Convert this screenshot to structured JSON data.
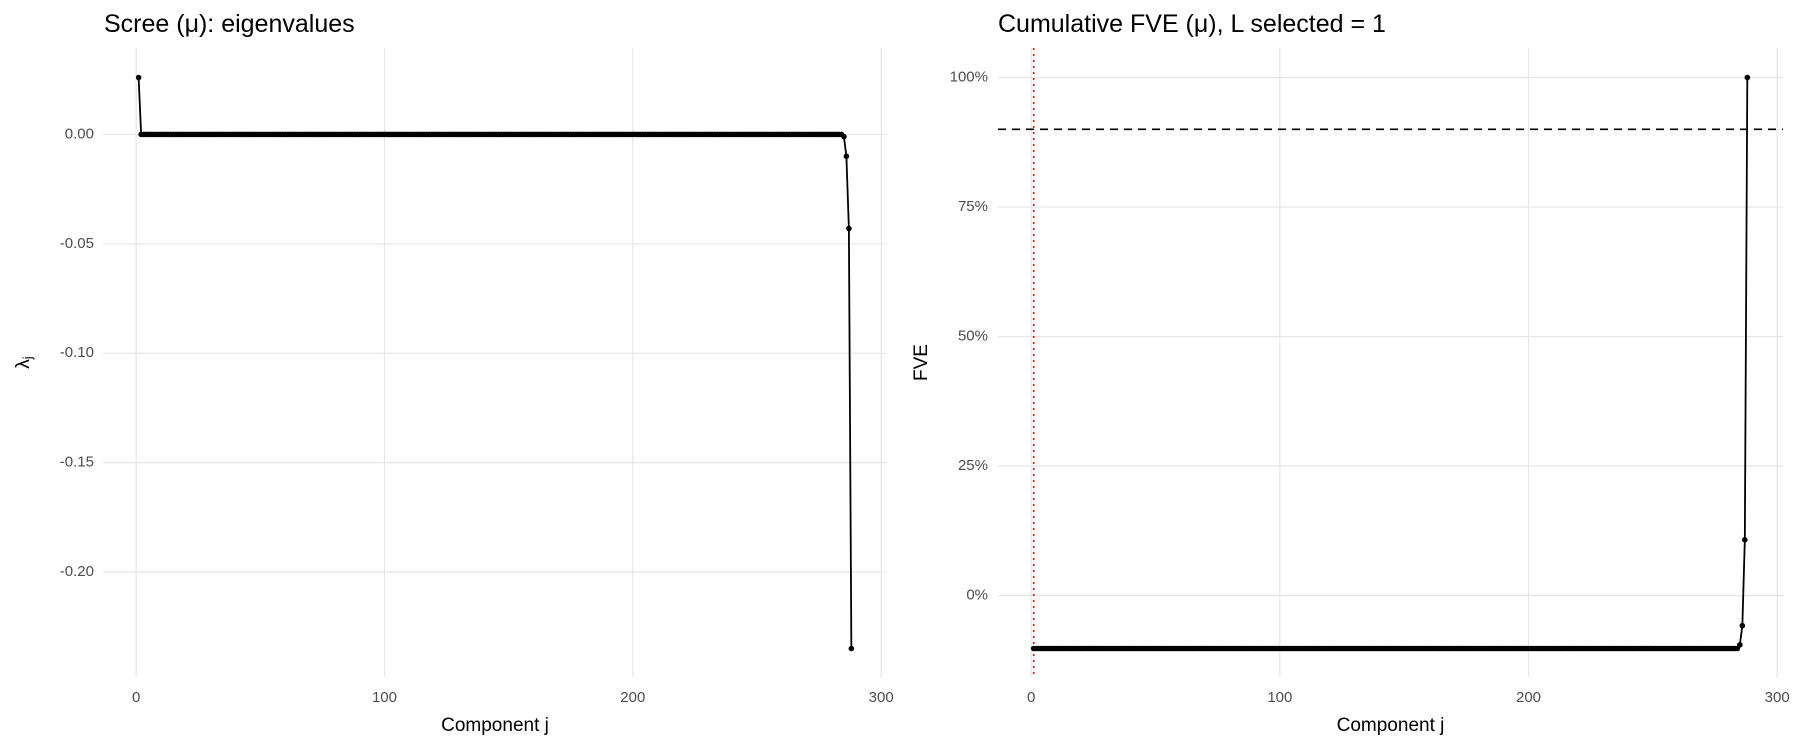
{
  "chart_data": [
    {
      "type": "line",
      "title": "Scree (μ): eigenvalues",
      "x_label": "Component j",
      "y_label": "λ",
      "y_label_subscript": "j",
      "color": "#000000",
      "grid": true,
      "xlim": [
        -13.35,
        302.35
      ],
      "xticks": [
        0,
        100,
        200,
        300
      ],
      "ylim": [
        -0.248,
        0.0395
      ],
      "yticks": [
        {
          "value": 0,
          "label": "0.00"
        },
        {
          "value": -0.05,
          "label": "-0.05"
        },
        {
          "value": -0.1,
          "label": "-0.10"
        },
        {
          "value": -0.15,
          "label": "-0.15"
        },
        {
          "value": -0.2,
          "label": "-0.20"
        }
      ],
      "x": [
        1,
        2,
        3,
        4,
        5,
        6,
        7,
        8,
        9,
        10,
        11,
        12,
        13,
        14,
        15,
        16,
        17,
        18,
        19,
        20,
        21,
        22,
        23,
        24,
        25,
        26,
        27,
        28,
        29,
        30,
        31,
        32,
        33,
        34,
        35,
        36,
        37,
        38,
        39,
        40,
        41,
        42,
        43,
        44,
        45,
        46,
        47,
        48,
        49,
        50,
        51,
        52,
        53,
        54,
        55,
        56,
        57,
        58,
        59,
        60,
        61,
        62,
        63,
        64,
        65,
        66,
        67,
        68,
        69,
        70,
        71,
        72,
        73,
        74,
        75,
        76,
        77,
        78,
        79,
        80,
        81,
        82,
        83,
        84,
        85,
        86,
        87,
        88,
        89,
        90,
        91,
        92,
        93,
        94,
        95,
        96,
        97,
        98,
        99,
        100,
        101,
        102,
        103,
        104,
        105,
        106,
        107,
        108,
        109,
        110,
        111,
        112,
        113,
        114,
        115,
        116,
        117,
        118,
        119,
        120,
        121,
        122,
        123,
        124,
        125,
        126,
        127,
        128,
        129,
        130,
        131,
        132,
        133,
        134,
        135,
        136,
        137,
        138,
        139,
        140,
        141,
        142,
        143,
        144,
        145,
        146,
        147,
        148,
        149,
        150,
        151,
        152,
        153,
        154,
        155,
        156,
        157,
        158,
        159,
        160,
        161,
        162,
        163,
        164,
        165,
        166,
        167,
        168,
        169,
        170,
        171,
        172,
        173,
        174,
        175,
        176,
        177,
        178,
        179,
        180,
        181,
        182,
        183,
        184,
        185,
        186,
        187,
        188,
        189,
        190,
        191,
        192,
        193,
        194,
        195,
        196,
        197,
        198,
        199,
        200,
        201,
        202,
        203,
        204,
        205,
        206,
        207,
        208,
        209,
        210,
        211,
        212,
        213,
        214,
        215,
        216,
        217,
        218,
        219,
        220,
        221,
        222,
        223,
        224,
        225,
        226,
        227,
        228,
        229,
        230,
        231,
        232,
        233,
        234,
        235,
        236,
        237,
        238,
        239,
        240,
        241,
        242,
        243,
        244,
        245,
        246,
        247,
        248,
        249,
        250,
        251,
        252,
        253,
        254,
        255,
        256,
        257,
        258,
        259,
        260,
        261,
        262,
        263,
        264,
        265,
        266,
        267,
        268,
        269,
        270,
        271,
        272,
        273,
        274,
        275,
        276,
        277,
        278,
        279,
        280,
        281,
        282,
        283,
        284,
        285,
        286,
        287,
        288
      ],
      "values": [
        0.026,
        0,
        0,
        0,
        0,
        0,
        0,
        0,
        0,
        0,
        0,
        0,
        0,
        0,
        0,
        0,
        0,
        0,
        0,
        0,
        0,
        0,
        0,
        0,
        0,
        0,
        0,
        0,
        0,
        0,
        0,
        0,
        0,
        0,
        0,
        0,
        0,
        0,
        0,
        0,
        0,
        0,
        0,
        0,
        0,
        0,
        0,
        0,
        0,
        0,
        0,
        0,
        0,
        0,
        0,
        0,
        0,
        0,
        0,
        0,
        0,
        0,
        0,
        0,
        0,
        0,
        0,
        0,
        0,
        0,
        0,
        0,
        0,
        0,
        0,
        0,
        0,
        0,
        0,
        0,
        0,
        0,
        0,
        0,
        0,
        0,
        0,
        0,
        0,
        0,
        0,
        0,
        0,
        0,
        0,
        0,
        0,
        0,
        0,
        0,
        0,
        0,
        0,
        0,
        0,
        0,
        0,
        0,
        0,
        0,
        0,
        0,
        0,
        0,
        0,
        0,
        0,
        0,
        0,
        0,
        0,
        0,
        0,
        0,
        0,
        0,
        0,
        0,
        0,
        0,
        0,
        0,
        0,
        0,
        0,
        0,
        0,
        0,
        0,
        0,
        0,
        0,
        0,
        0,
        0,
        0,
        0,
        0,
        0,
        0,
        0,
        0,
        0,
        0,
        0,
        0,
        0,
        0,
        0,
        0,
        0,
        0,
        0,
        0,
        0,
        0,
        0,
        0,
        0,
        0,
        0,
        0,
        0,
        0,
        0,
        0,
        0,
        0,
        0,
        0,
        0,
        0,
        0,
        0,
        0,
        0,
        0,
        0,
        0,
        0,
        0,
        0,
        0,
        0,
        0,
        0,
        0,
        0,
        0,
        0,
        0,
        0,
        0,
        0,
        0,
        0,
        0,
        0,
        0,
        0,
        0,
        0,
        0,
        0,
        0,
        0,
        0,
        0,
        0,
        0,
        0,
        0,
        0,
        0,
        0,
        0,
        0,
        0,
        0,
        0,
        0,
        0,
        0,
        0,
        0,
        0,
        0,
        0,
        0,
        0,
        0,
        0,
        0,
        0,
        0,
        0,
        0,
        0,
        0,
        0,
        0,
        0,
        0,
        0,
        0,
        0,
        0,
        0,
        0,
        0,
        0,
        0,
        0,
        0,
        0,
        0,
        0,
        0,
        0,
        0,
        0,
        0,
        0,
        0,
        0,
        0,
        0,
        0,
        0,
        0,
        0,
        0,
        0,
        0,
        -0.001,
        -0.01,
        -0.043,
        -0.235
      ]
    },
    {
      "type": "line",
      "title": "Cumulative FVE (μ), L selected = 1",
      "x_label": "Component j",
      "y_label": "FVE",
      "color": "#000000",
      "grid": true,
      "hline": 90,
      "vline": 1,
      "xlim": [
        -13.35,
        302.35
      ],
      "xticks": [
        0,
        100,
        200,
        300
      ],
      "ylim": [
        -15.7,
        105.7
      ],
      "yticks": [
        {
          "value": 0,
          "label": "0%"
        },
        {
          "value": 25,
          "label": "25%"
        },
        {
          "value": 50,
          "label": "50%"
        },
        {
          "value": 75,
          "label": "75%"
        },
        {
          "value": 100,
          "label": "100%"
        }
      ],
      "x": [
        1,
        2,
        3,
        4,
        5,
        6,
        7,
        8,
        9,
        10,
        11,
        12,
        13,
        14,
        15,
        16,
        17,
        18,
        19,
        20,
        21,
        22,
        23,
        24,
        25,
        26,
        27,
        28,
        29,
        30,
        31,
        32,
        33,
        34,
        35,
        36,
        37,
        38,
        39,
        40,
        41,
        42,
        43,
        44,
        45,
        46,
        47,
        48,
        49,
        50,
        51,
        52,
        53,
        54,
        55,
        56,
        57,
        58,
        59,
        60,
        61,
        62,
        63,
        64,
        65,
        66,
        67,
        68,
        69,
        70,
        71,
        72,
        73,
        74,
        75,
        76,
        77,
        78,
        79,
        80,
        81,
        82,
        83,
        84,
        85,
        86,
        87,
        88,
        89,
        90,
        91,
        92,
        93,
        94,
        95,
        96,
        97,
        98,
        99,
        100,
        101,
        102,
        103,
        104,
        105,
        106,
        107,
        108,
        109,
        110,
        111,
        112,
        113,
        114,
        115,
        116,
        117,
        118,
        119,
        120,
        121,
        122,
        123,
        124,
        125,
        126,
        127,
        128,
        129,
        130,
        131,
        132,
        133,
        134,
        135,
        136,
        137,
        138,
        139,
        140,
        141,
        142,
        143,
        144,
        145,
        146,
        147,
        148,
        149,
        150,
        151,
        152,
        153,
        154,
        155,
        156,
        157,
        158,
        159,
        160,
        161,
        162,
        163,
        164,
        165,
        166,
        167,
        168,
        169,
        170,
        171,
        172,
        173,
        174,
        175,
        176,
        177,
        178,
        179,
        180,
        181,
        182,
        183,
        184,
        185,
        186,
        187,
        188,
        189,
        190,
        191,
        192,
        193,
        194,
        195,
        196,
        197,
        198,
        199,
        200,
        201,
        202,
        203,
        204,
        205,
        206,
        207,
        208,
        209,
        210,
        211,
        212,
        213,
        214,
        215,
        216,
        217,
        218,
        219,
        220,
        221,
        222,
        223,
        224,
        225,
        226,
        227,
        228,
        229,
        230,
        231,
        232,
        233,
        234,
        235,
        236,
        237,
        238,
        239,
        240,
        241,
        242,
        243,
        244,
        245,
        246,
        247,
        248,
        249,
        250,
        251,
        252,
        253,
        254,
        255,
        256,
        257,
        258,
        259,
        260,
        261,
        262,
        263,
        264,
        265,
        266,
        267,
        268,
        269,
        270,
        271,
        272,
        273,
        274,
        275,
        276,
        277,
        278,
        279,
        280,
        281,
        282,
        283,
        284,
        285,
        286,
        287,
        288
      ],
      "values": [
        -10.2,
        -10.2,
        -10.2,
        -10.2,
        -10.2,
        -10.2,
        -10.2,
        -10.2,
        -10.2,
        -10.2,
        -10.2,
        -10.2,
        -10.2,
        -10.2,
        -10.2,
        -10.2,
        -10.2,
        -10.2,
        -10.2,
        -10.2,
        -10.2,
        -10.2,
        -10.2,
        -10.2,
        -10.2,
        -10.2,
        -10.2,
        -10.2,
        -10.2,
        -10.2,
        -10.2,
        -10.2,
        -10.2,
        -10.2,
        -10.2,
        -10.2,
        -10.2,
        -10.2,
        -10.2,
        -10.2,
        -10.2,
        -10.2,
        -10.2,
        -10.2,
        -10.2,
        -10.2,
        -10.2,
        -10.2,
        -10.2,
        -10.2,
        -10.2,
        -10.2,
        -10.2,
        -10.2,
        -10.2,
        -10.2,
        -10.2,
        -10.2,
        -10.2,
        -10.2,
        -10.2,
        -10.2,
        -10.2,
        -10.2,
        -10.2,
        -10.2,
        -10.2,
        -10.2,
        -10.2,
        -10.2,
        -10.2,
        -10.2,
        -10.2,
        -10.2,
        -10.2,
        -10.2,
        -10.2,
        -10.2,
        -10.2,
        -10.2,
        -10.2,
        -10.2,
        -10.2,
        -10.2,
        -10.2,
        -10.2,
        -10.2,
        -10.2,
        -10.2,
        -10.2,
        -10.2,
        -10.2,
        -10.2,
        -10.2,
        -10.2,
        -10.2,
        -10.2,
        -10.2,
        -10.2,
        -10.2,
        -10.2,
        -10.2,
        -10.2,
        -10.2,
        -10.2,
        -10.2,
        -10.2,
        -10.2,
        -10.2,
        -10.2,
        -10.2,
        -10.2,
        -10.2,
        -10.2,
        -10.2,
        -10.2,
        -10.2,
        -10.2,
        -10.2,
        -10.2,
        -10.2,
        -10.2,
        -10.2,
        -10.2,
        -10.2,
        -10.2,
        -10.2,
        -10.2,
        -10.2,
        -10.2,
        -10.2,
        -10.2,
        -10.2,
        -10.2,
        -10.2,
        -10.2,
        -10.2,
        -10.2,
        -10.2,
        -10.2,
        -10.2,
        -10.2,
        -10.2,
        -10.2,
        -10.2,
        -10.2,
        -10.2,
        -10.2,
        -10.2,
        -10.2,
        -10.2,
        -10.2,
        -10.2,
        -10.2,
        -10.2,
        -10.2,
        -10.2,
        -10.2,
        -10.2,
        -10.2,
        -10.2,
        -10.2,
        -10.2,
        -10.2,
        -10.2,
        -10.2,
        -10.2,
        -10.2,
        -10.2,
        -10.2,
        -10.2,
        -10.2,
        -10.2,
        -10.2,
        -10.2,
        -10.2,
        -10.2,
        -10.2,
        -10.2,
        -10.2,
        -10.2,
        -10.2,
        -10.2,
        -10.2,
        -10.2,
        -10.2,
        -10.2,
        -10.2,
        -10.2,
        -10.2,
        -10.2,
        -10.2,
        -10.2,
        -10.2,
        -10.2,
        -10.2,
        -10.2,
        -10.2,
        -10.2,
        -10.2,
        -10.2,
        -10.2,
        -10.2,
        -10.2,
        -10.2,
        -10.2,
        -10.2,
        -10.2,
        -10.2,
        -10.2,
        -10.2,
        -10.2,
        -10.2,
        -10.2,
        -10.2,
        -10.2,
        -10.2,
        -10.2,
        -10.2,
        -10.2,
        -10.2,
        -10.2,
        -10.2,
        -10.2,
        -10.2,
        -10.2,
        -10.2,
        -10.2,
        -10.2,
        -10.2,
        -10.2,
        -10.2,
        -10.2,
        -10.2,
        -10.2,
        -10.2,
        -10.2,
        -10.2,
        -10.2,
        -10.2,
        -10.2,
        -10.2,
        -10.2,
        -10.2,
        -10.2,
        -10.2,
        -10.2,
        -10.2,
        -10.2,
        -10.2,
        -10.2,
        -10.2,
        -10.2,
        -10.2,
        -10.2,
        -10.2,
        -10.2,
        -10.2,
        -10.2,
        -10.2,
        -10.2,
        -10.2,
        -10.2,
        -10.2,
        -10.2,
        -10.2,
        -10.2,
        -10.2,
        -10.2,
        -10.2,
        -10.2,
        -10.2,
        -10.2,
        -10.2,
        -10.2,
        -10.2,
        -10.2,
        -10.2,
        -10.2,
        -10.2,
        -10.2,
        -10.2,
        -10.2,
        -10.2,
        -9.5,
        -5.8,
        10.8,
        100
      ]
    }
  ]
}
